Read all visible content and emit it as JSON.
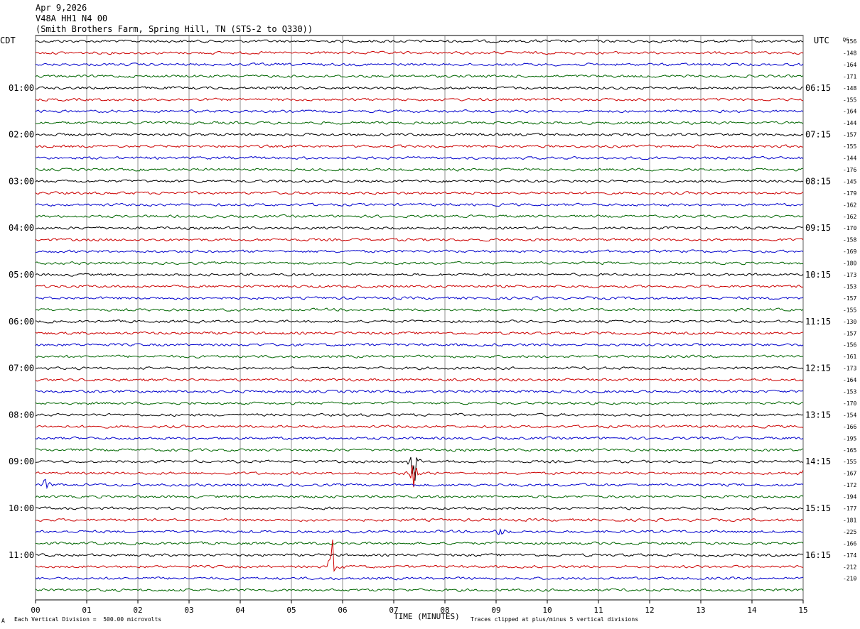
{
  "header": {
    "date": "Apr 9,2026",
    "station": "V48A HH1 N4 00",
    "location": "(Smith Brothers Farm, Spring Hill, TN (STS-2 to Q330))"
  },
  "footer": {
    "scale_note": "Each Vertical Division =  500.00 microvolts",
    "clip_note": "Traces clipped at plus/minus 5 vertical divisions",
    "corner_mark": "A"
  },
  "chart_data": {
    "type": "line",
    "title": "",
    "xlabel": "TIME (MINUTES)",
    "x_ticks": [
      "00",
      "01",
      "02",
      "03",
      "04",
      "05",
      "06",
      "07",
      "08",
      "09",
      "10",
      "11",
      "12",
      "13",
      "14",
      "15"
    ],
    "xlim": [
      0,
      15
    ],
    "left_axis_title": "CDT",
    "right_axis_title": "UTC",
    "dc_title": "DC",
    "grid": true,
    "trace_colors": [
      "#000000",
      "#cc0000",
      "#0000cc",
      "#006600"
    ],
    "rows": 48,
    "left_hour_labels": [
      "01:00",
      "02:00",
      "03:00",
      "04:00",
      "05:00",
      "06:00",
      "07:00",
      "08:00",
      "09:00",
      "10:00",
      "11:00"
    ],
    "right_hour_labels": [
      "06:15",
      "07:15",
      "08:15",
      "09:15",
      "10:15",
      "11:15",
      "12:15",
      "13:15",
      "14:15",
      "15:15",
      "16:15"
    ],
    "dc_offsets": [
      "-156",
      "-148",
      "-164",
      "-171",
      "-148",
      "-155",
      "-164",
      "-144",
      "-157",
      "-155",
      "-144",
      "-176",
      "-145",
      "-179",
      "-162",
      "-162",
      "-170",
      "-158",
      "-169",
      "-180",
      "-173",
      "-153",
      "-157",
      "-155",
      "-130",
      "-157",
      "-156",
      "-161",
      "-173",
      "-164",
      "-153",
      "-170",
      "-154",
      "-166",
      "-195",
      "-165",
      "-155",
      "-167",
      "-172",
      "-194",
      "-177",
      "-181",
      "-225",
      "-166",
      "-174",
      "-212",
      "-210"
    ],
    "events": [
      {
        "row": 36,
        "minute": 7.4,
        "amplitude": 2.6
      },
      {
        "row": 37,
        "minute": 7.4,
        "amplitude": 1.8
      },
      {
        "row": 37,
        "minute": 15.0,
        "amplitude": 0.9
      },
      {
        "row": 38,
        "minute": 0.2,
        "amplitude": 0.7
      },
      {
        "row": 42,
        "minute": 9.1,
        "amplitude": 0.6
      },
      {
        "row": 45,
        "minute": 5.8,
        "amplitude": 2.8
      }
    ]
  }
}
